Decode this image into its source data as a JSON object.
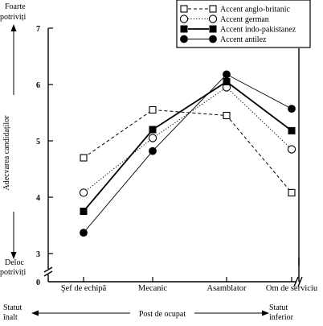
{
  "chart_data": {
    "type": "line",
    "categories": [
      "Şef de echipă",
      "Mecanic",
      "Asamblator",
      "Om de serviciu"
    ],
    "ylim": [
      0,
      7
    ],
    "yticks": [
      0,
      3,
      4,
      5,
      6,
      7
    ],
    "axis_break": true,
    "ylabel": "Adecvarea candidaților",
    "y_top_label_lines": [
      "Foarte",
      "potriviți"
    ],
    "y_bottom_label_lines": [
      "Deloc",
      "potriviți"
    ],
    "xlabel": "Post de ocupat",
    "x_left_label_lines": [
      "Statut",
      "înalt"
    ],
    "x_right_label_lines": [
      "Statut",
      "inferior"
    ],
    "legend_position": "top-right",
    "series": [
      {
        "name": "Accent anglo-britanic",
        "line_style": "dashed",
        "marker": "open-square",
        "values": [
          4.7,
          5.55,
          5.45,
          4.08
        ]
      },
      {
        "name": "Accent german",
        "line_style": "dotted",
        "marker": "open-circle",
        "values": [
          4.08,
          5.05,
          5.95,
          4.85
        ]
      },
      {
        "name": "Accent indo-pakistanez",
        "line_style": "solid-thick",
        "marker": "filled-square",
        "values": [
          3.75,
          5.2,
          6.05,
          5.18
        ]
      },
      {
        "name": "Accent antilez",
        "line_style": "solid-thin",
        "marker": "filled-circle",
        "values": [
          3.37,
          4.82,
          6.18,
          5.57
        ]
      }
    ]
  }
}
